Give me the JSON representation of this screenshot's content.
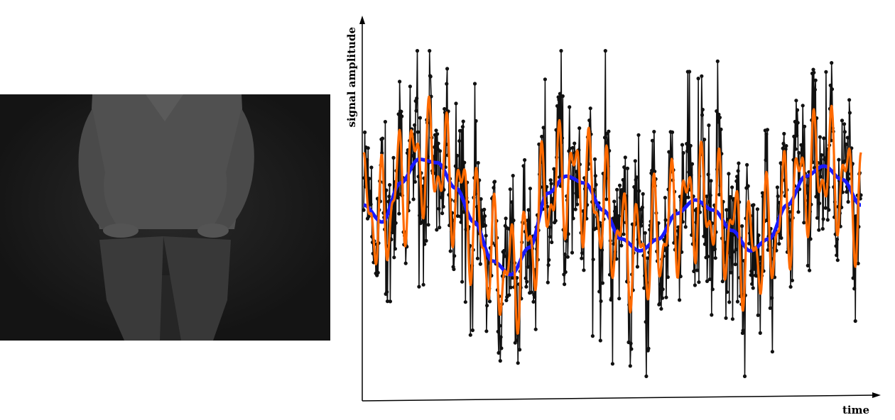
{
  "figure": {
    "photo_caption": "",
    "colors": {
      "raw": "#111111",
      "smooth_slow": "#1a1aff",
      "smooth_fast": "#ff6a00",
      "photo_bg": "#161616",
      "figure": "#8a8a8a"
    }
  },
  "chart_data": {
    "type": "line",
    "title": "",
    "xlabel": "time",
    "ylabel": "signal amplitude",
    "xlim": [
      0,
      1
    ],
    "ylim": [
      -1,
      1
    ],
    "grid": false,
    "legend": "none",
    "seed": 7,
    "n_points": 900,
    "series": [
      {
        "role": "raw",
        "markers": true,
        "noise_amplitude": 0.34,
        "spike_amplitude": 0.62
      },
      {
        "role": "smooth_slow",
        "markers": false
      },
      {
        "role": "smooth_fast",
        "markers": false
      }
    ],
    "control_points": {
      "slow": [
        0.05,
        -0.05,
        0.18,
        0.32,
        0.3,
        0.15,
        -0.05,
        -0.28,
        -0.36,
        -0.2,
        0.12,
        0.22,
        0.18,
        0.02,
        -0.15,
        -0.22,
        -0.15,
        0.0,
        0.08,
        0.02,
        -0.1,
        -0.22,
        -0.15,
        0.05,
        0.22,
        0.28,
        0.2,
        0.05
      ],
      "fast_amplitude": 0.4
    }
  }
}
